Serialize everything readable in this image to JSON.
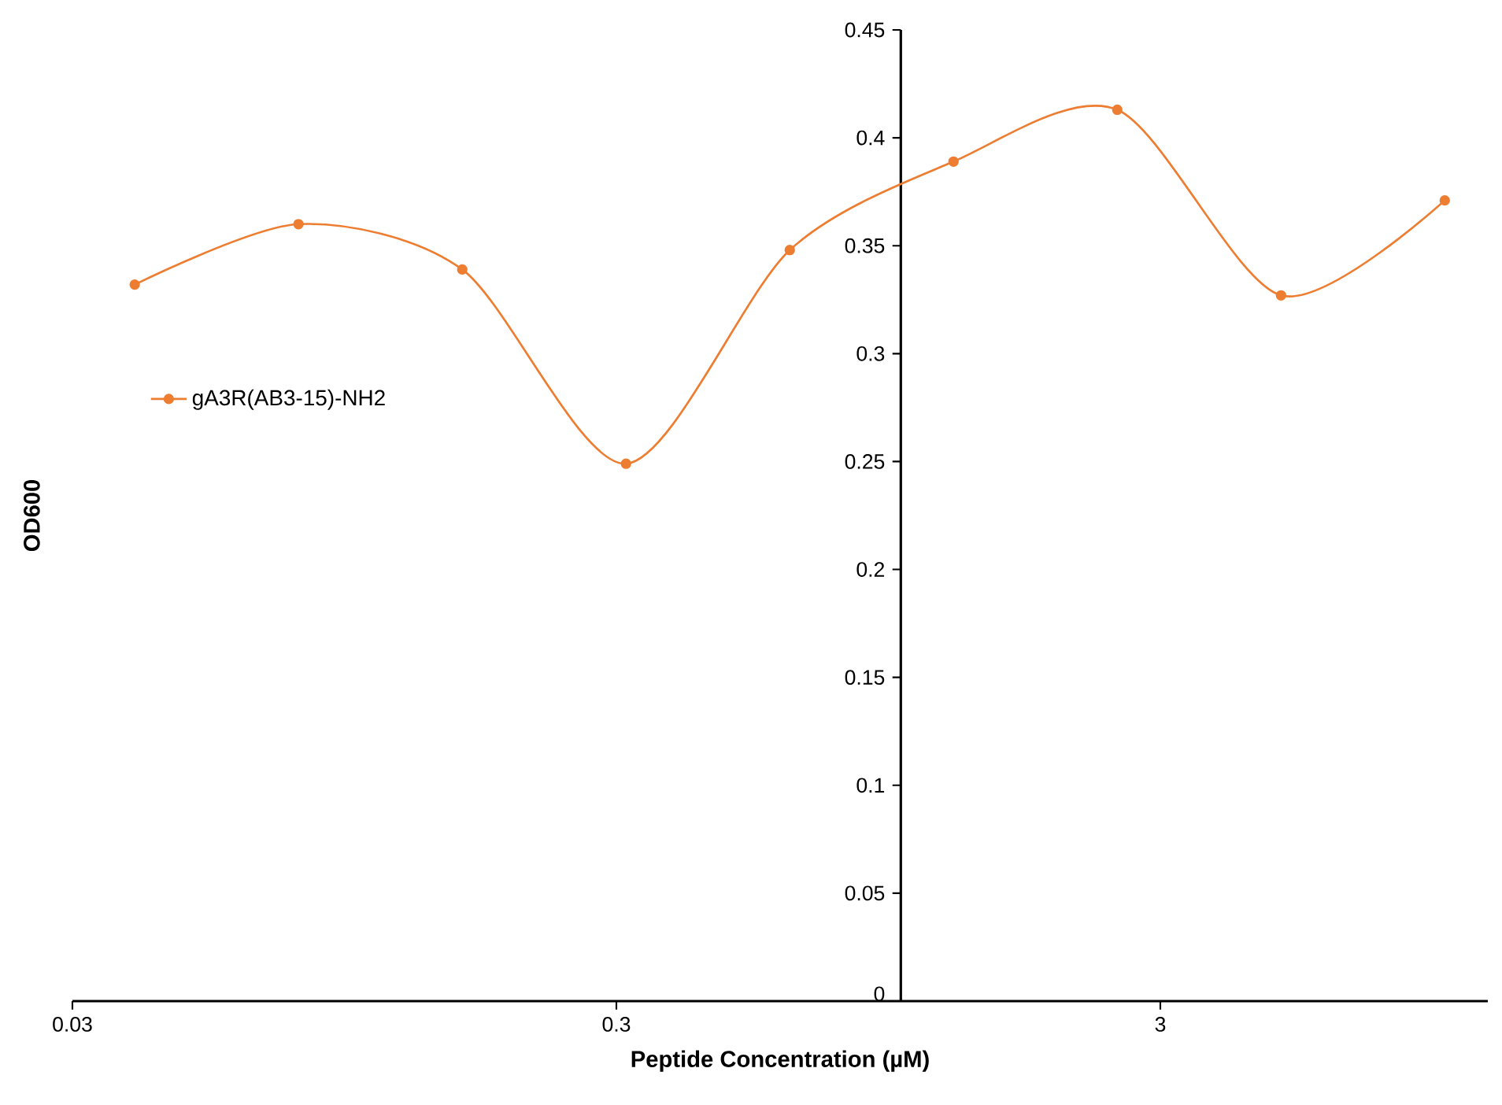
{
  "chart_data": {
    "type": "line",
    "xlabel": "Peptide Concentration (µM)",
    "ylabel": "OD600",
    "log": "x",
    "x": [
      0.0390625,
      0.078125,
      0.15625,
      0.3125,
      0.625,
      1.25,
      2.5,
      5,
      10
    ],
    "series": [
      {
        "name": "gA3R(AB3-15)-NH2",
        "color": "#ed7d31",
        "values": [
          0.332,
          0.36,
          0.339,
          0.249,
          0.348,
          0.389,
          0.413,
          0.327,
          0.371
        ]
      }
    ],
    "xlim": [
      0.03,
      12
    ],
    "xticks": [
      0.03,
      0.3,
      3
    ],
    "ylim": [
      0,
      0.45
    ],
    "yticks": [
      0,
      0.05,
      0.1,
      0.15,
      0.2,
      0.25,
      0.3,
      0.35,
      0.4,
      0.45
    ],
    "legend": "left",
    "marker": "circle",
    "line_style": "solid"
  }
}
